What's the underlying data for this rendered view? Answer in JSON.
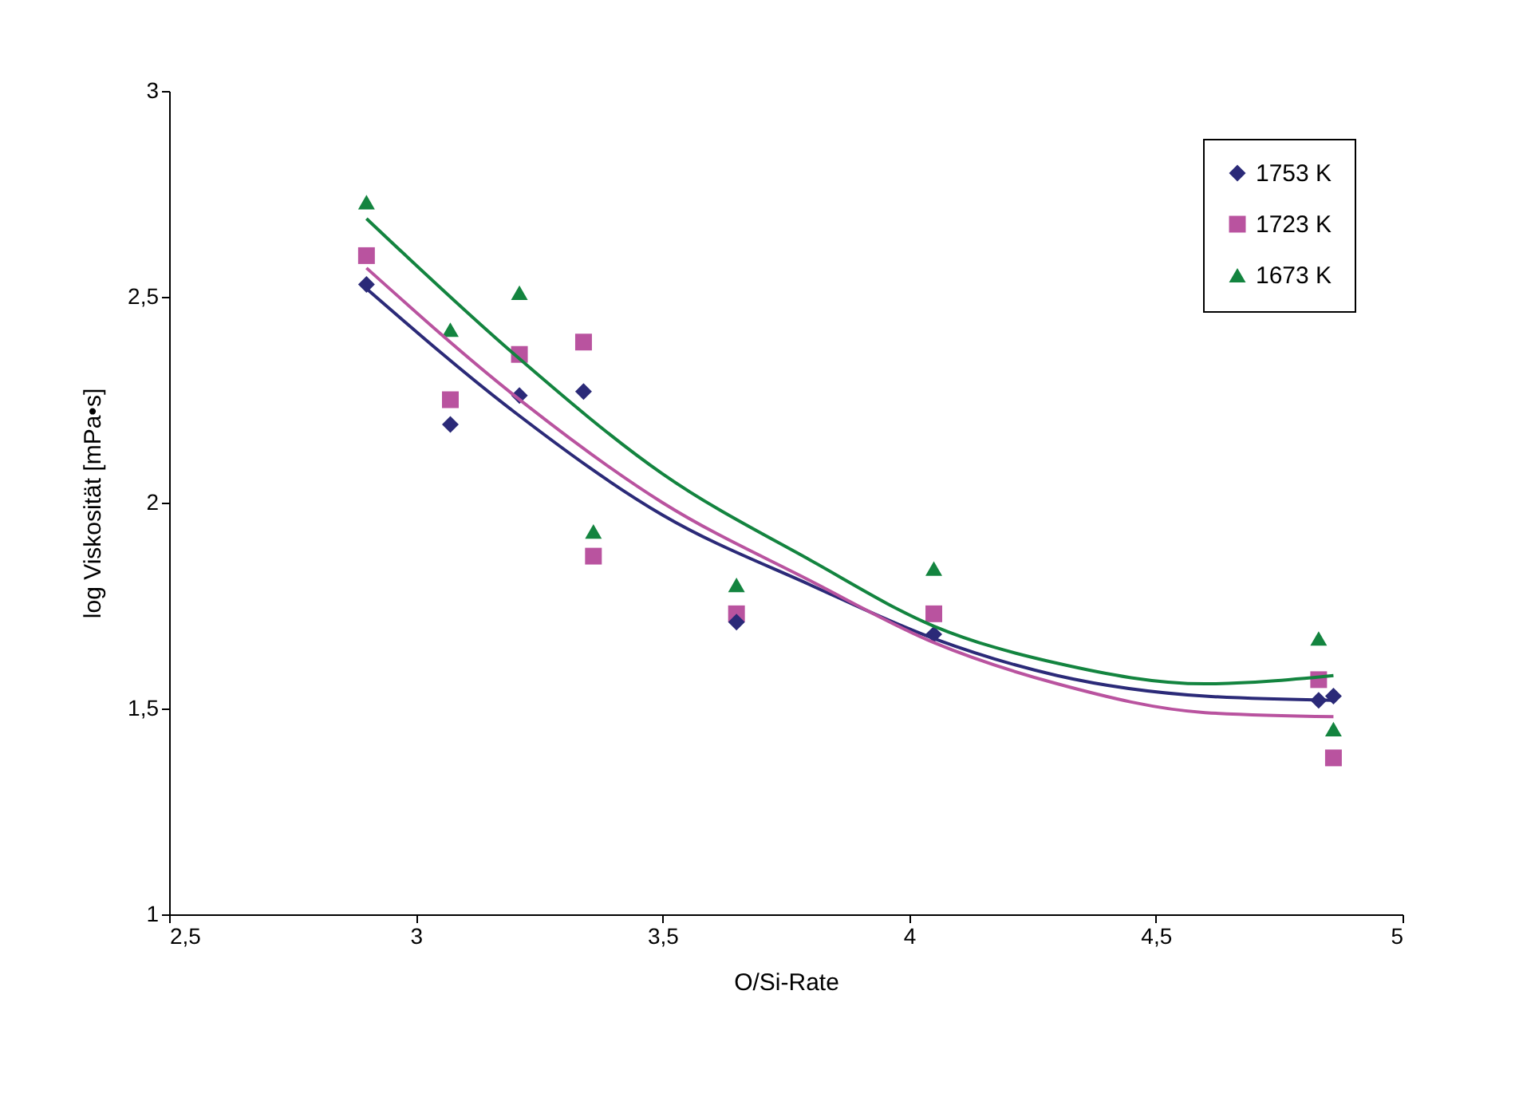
{
  "chart_data": {
    "type": "scatter",
    "xlabel": "O/Si-Rate",
    "ylabel": "log Viskosität [mPa•s]",
    "xlim": [
      2.5,
      5
    ],
    "ylim": [
      1,
      3
    ],
    "xticks": [
      {
        "value": 2.5,
        "label": "2,5"
      },
      3,
      {
        "value": 3.5,
        "label": "3,5"
      },
      4,
      {
        "value": 4.5,
        "label": "4,5"
      },
      5
    ],
    "yticks": [
      1,
      {
        "value": 1.5,
        "label": "1,5"
      },
      2,
      {
        "value": 2.5,
        "label": "2,5"
      },
      3
    ],
    "grid": false,
    "legend": "top right",
    "series": [
      {
        "name": "1753 K",
        "color": "#2b2a78",
        "marker": "diamond",
        "x": [
          2.9,
          3.07,
          3.21,
          3.34,
          3.65,
          4.05,
          4.83,
          4.86
        ],
        "values": [
          2.53,
          2.19,
          2.26,
          2.27,
          1.71,
          1.68,
          1.52,
          1.53
        ]
      },
      {
        "name": "1723 K",
        "color": "#b9539f",
        "marker": "square",
        "x": [
          2.9,
          3.07,
          3.21,
          3.34,
          3.36,
          3.65,
          4.05,
          4.83,
          4.86
        ],
        "values": [
          2.6,
          2.25,
          2.36,
          2.39,
          1.87,
          1.73,
          1.73,
          1.57,
          1.38
        ]
      },
      {
        "name": "1673 K",
        "color": "#13843f",
        "marker": "triangle",
        "x": [
          2.9,
          3.07,
          3.21,
          3.36,
          3.65,
          4.05,
          4.83,
          4.86
        ],
        "values": [
          2.73,
          2.42,
          2.51,
          1.93,
          1.8,
          1.84,
          1.67,
          1.45
        ]
      },
      {
        "type": "line",
        "color": "#2b2a78",
        "marker": "none",
        "line_style": "solid",
        "x": [
          2.9,
          3.2,
          3.5,
          3.8,
          4.05,
          4.3,
          4.6,
          4.86
        ],
        "values": [
          2.52,
          2.22,
          1.97,
          1.8,
          1.67,
          1.58,
          1.53,
          1.52
        ]
      },
      {
        "type": "line",
        "color": "#b9539f",
        "marker": "none",
        "line_style": "solid",
        "x": [
          2.9,
          3.2,
          3.5,
          3.8,
          4.05,
          4.3,
          4.6,
          4.86
        ],
        "values": [
          2.57,
          2.26,
          2.0,
          1.81,
          1.66,
          1.56,
          1.49,
          1.48
        ]
      },
      {
        "type": "line",
        "color": "#13843f",
        "marker": "none",
        "line_style": "solid",
        "x": [
          2.9,
          3.2,
          3.5,
          3.8,
          4.05,
          4.3,
          4.6,
          4.86
        ],
        "values": [
          2.69,
          2.36,
          2.07,
          1.86,
          1.7,
          1.61,
          1.56,
          1.58
        ]
      }
    ]
  }
}
